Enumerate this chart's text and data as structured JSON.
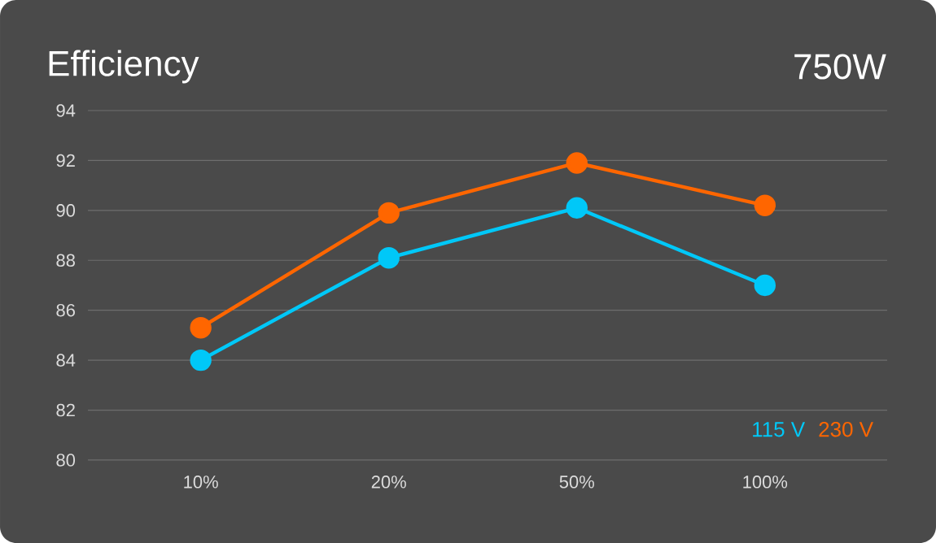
{
  "chart_data": {
    "type": "line",
    "title": "Efficiency",
    "subtitle": "750W",
    "categories": [
      "10%",
      "20%",
      "50%",
      "100%"
    ],
    "series": [
      {
        "name": "115 V",
        "color": "#00c8f8",
        "values": [
          84.0,
          88.1,
          90.1,
          87.0
        ]
      },
      {
        "name": "230 V",
        "color": "#ff6600",
        "values": [
          85.3,
          89.9,
          91.9,
          90.2
        ]
      }
    ],
    "ylim": [
      80,
      94
    ],
    "yticks": [
      80,
      82,
      84,
      86,
      88,
      90,
      92,
      94
    ],
    "grid": "y",
    "legend": "bottom right",
    "marker": "circle",
    "line_style": "solid"
  }
}
